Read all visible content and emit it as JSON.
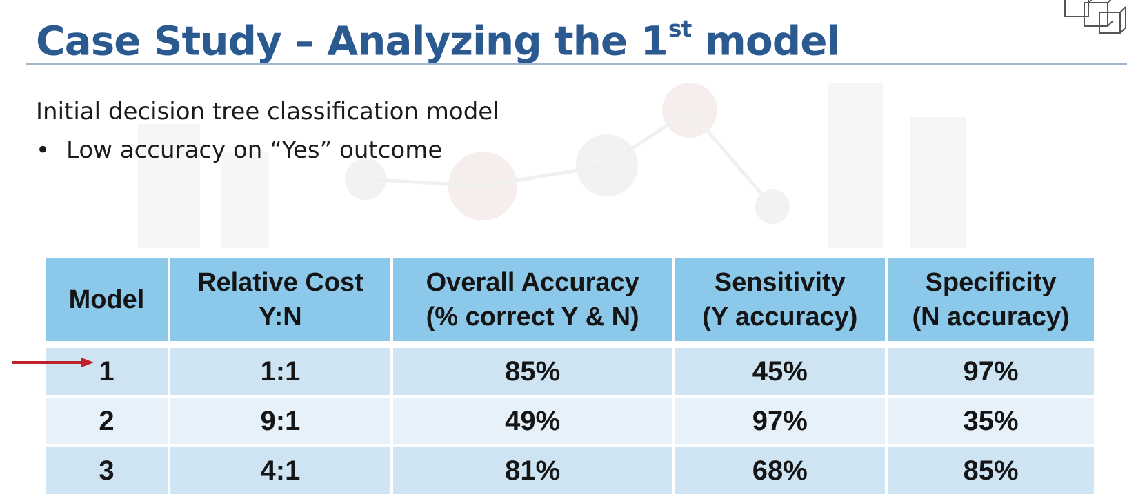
{
  "slide": {
    "title_main": "Case Study – Analyzing the 1",
    "title_sup": "st",
    "title_end": " model",
    "subtitle": "Initial decision tree classification model",
    "bullet_marker": "•",
    "bullets": [
      "Low accuracy on “Yes” outcome"
    ]
  },
  "icons": {
    "corner": "boxes-icon",
    "row_marker": "red-arrow-right-icon"
  },
  "colors": {
    "title": "#2a5a8f",
    "header_bg": "#8cc8ea",
    "row_dark": "#cfe4f3",
    "row_light": "#e6f1f9",
    "arrow": "#c0202a"
  },
  "table": {
    "headers": [
      {
        "line1": "Model",
        "line2": ""
      },
      {
        "line1": "Relative Cost",
        "line2": "Y:N"
      },
      {
        "line1": "Overall Accuracy",
        "line2": "(% correct Y & N)"
      },
      {
        "line1": "Sensitivity",
        "line2": "(Y accuracy)"
      },
      {
        "line1": "Specificity",
        "line2": "(N accuracy)"
      }
    ],
    "rows": [
      [
        "1",
        "1:1",
        "85%",
        "45%",
        "97%"
      ],
      [
        "2",
        "9:1",
        "49%",
        "97%",
        "35%"
      ],
      [
        "3",
        "4:1",
        "81%",
        "68%",
        "85%"
      ]
    ],
    "highlighted_row": "1"
  }
}
